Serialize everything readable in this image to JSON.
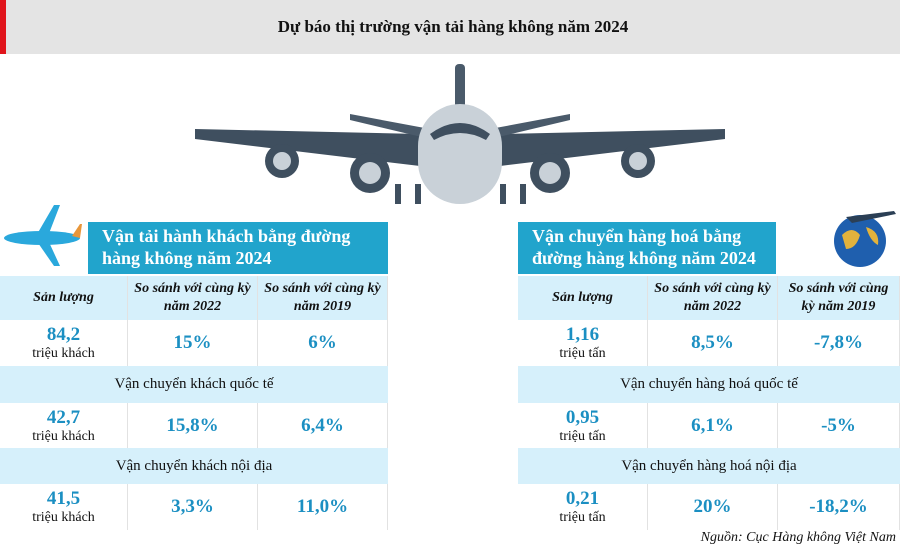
{
  "header": {
    "title": "Dự báo thị trường vận tải hàng không năm 2024"
  },
  "panels": [
    {
      "heading": [
        "Vận tải hành khách bằng đường",
        "hàng không năm 2024"
      ],
      "columns": [
        "Sản lượng",
        "So sánh với cùng kỳ năm 2022",
        "So sánh với cùng kỳ năm 2019"
      ],
      "groups": [
        {
          "value": "84,2",
          "unit": "triệu khách",
          "compare": [
            "15%",
            "6%"
          ]
        },
        {
          "label": "Vận chuyển khách quốc tế",
          "value": "42,7",
          "unit": "triệu khách",
          "compare": [
            "15,8%",
            "6,4%"
          ]
        },
        {
          "label": "Vận chuyển khách nội địa",
          "value": "41,5",
          "unit": "triệu khách",
          "compare": [
            "3,3%",
            "11,0%"
          ]
        }
      ]
    },
    {
      "heading": [
        "Vận chuyển hàng hoá bằng",
        "đường hàng không năm 2024"
      ],
      "columns": [
        "Sản lượng",
        "So sánh với cùng kỳ năm 2022",
        "So sánh với cùng kỳ năm 2019"
      ],
      "groups": [
        {
          "value": "1,16",
          "unit": "triệu tấn",
          "compare": [
            "8,5%",
            "-7,8%"
          ]
        },
        {
          "label": "Vận chuyển hàng hoá quốc tế",
          "value": "0,95",
          "unit": "triệu tấn",
          "compare": [
            "6,1%",
            "-5%"
          ]
        },
        {
          "label": "Vận chuyển hàng hoá nội địa",
          "value": "0,21",
          "unit": "triệu tấn",
          "compare": [
            "20%",
            "-18,2%"
          ]
        }
      ]
    }
  ],
  "source": "Nguồn: Cục Hàng không Việt Nam"
}
